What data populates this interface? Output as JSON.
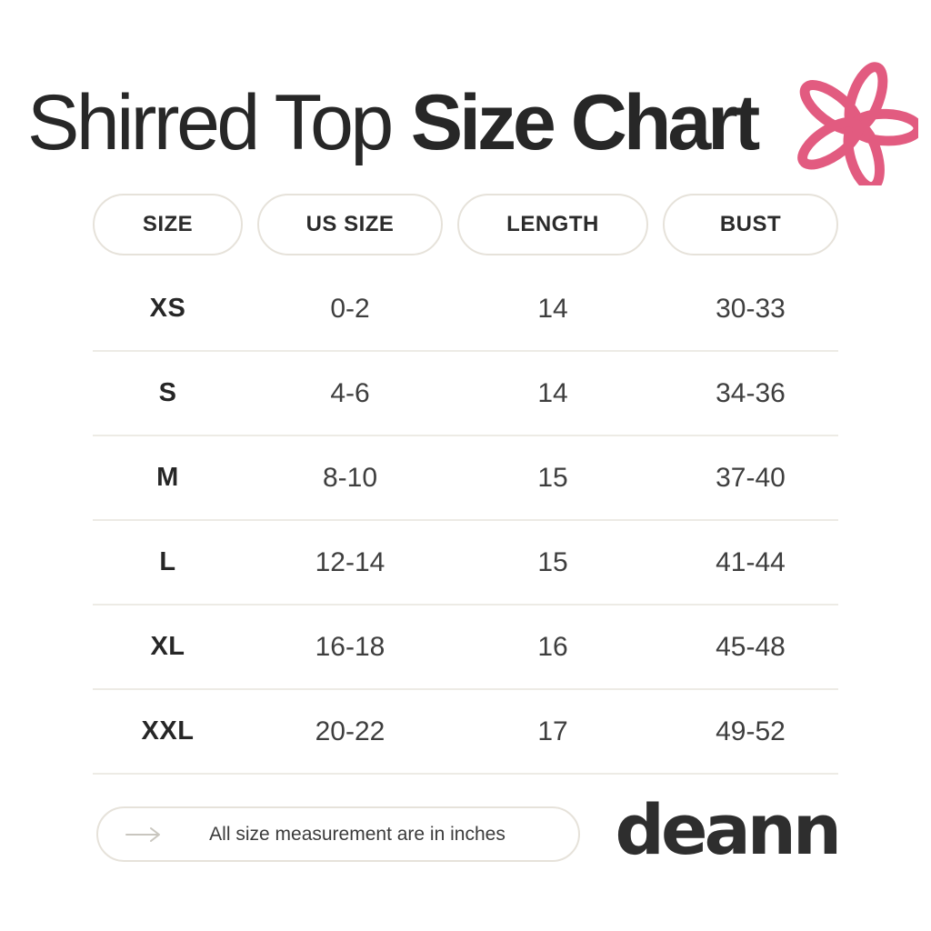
{
  "header": {
    "title_regular": "Shirred Top",
    "title_bold": "Size Chart",
    "flower_icon": "flower-icon"
  },
  "chart_data": {
    "type": "table",
    "title": "Shirred Top Size Chart",
    "columns": [
      "SIZE",
      "US SIZE",
      "LENGTH",
      "BUST"
    ],
    "rows": [
      [
        "XS",
        "0-2",
        "14",
        "30-33"
      ],
      [
        "S",
        "4-6",
        "14",
        "34-36"
      ],
      [
        "M",
        "8-10",
        "15",
        "37-40"
      ],
      [
        "L",
        "12-14",
        "15",
        "41-44"
      ],
      [
        "XL",
        "16-18",
        "16",
        "45-48"
      ],
      [
        "XXL",
        "20-22",
        "17",
        "49-52"
      ]
    ],
    "note": "All size measurement are in inches"
  },
  "footer": {
    "note": "All size measurement are in inches",
    "arrow_icon": "arrow-right-icon",
    "brand": "deann"
  },
  "colors": {
    "accent_pink": "#e25b80",
    "text_dark": "#272727",
    "text_body": "#3e3e3e",
    "pill_border": "#e6e2da",
    "row_divider": "#edebe5",
    "arrow_gray": "#c9c6bf"
  }
}
